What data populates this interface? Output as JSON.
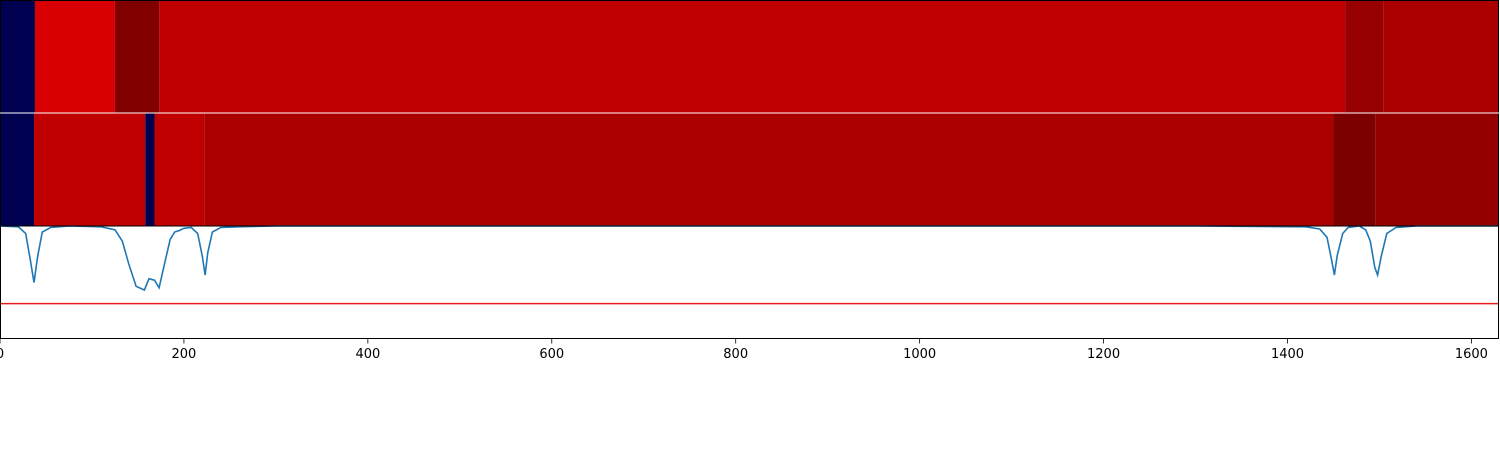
{
  "chart_data": [
    {
      "type": "heatmap",
      "xlim": [
        0,
        1630
      ],
      "segments": [
        {
          "x0": 0,
          "x1": 38,
          "color": "#000050"
        },
        {
          "x0": 38,
          "x1": 125,
          "color": "#d80000"
        },
        {
          "x0": 125,
          "x1": 173,
          "color": "#800000"
        },
        {
          "x0": 173,
          "x1": 1463,
          "color": "#c00000"
        },
        {
          "x0": 1463,
          "x1": 1504,
          "color": "#960000"
        },
        {
          "x0": 1504,
          "x1": 1630,
          "color": "#aa0000"
        }
      ]
    },
    {
      "type": "heatmap",
      "xlim": [
        0,
        1630
      ],
      "segments": [
        {
          "x0": 0,
          "x1": 37,
          "color": "#000050"
        },
        {
          "x0": 37,
          "x1": 158,
          "color": "#c00000"
        },
        {
          "x0": 158,
          "x1": 168,
          "color": "#000050"
        },
        {
          "x0": 168,
          "x1": 222,
          "color": "#c00000"
        },
        {
          "x0": 222,
          "x1": 1450,
          "color": "#aa0000"
        },
        {
          "x0": 1450,
          "x1": 1496,
          "color": "#7c0000"
        },
        {
          "x0": 1496,
          "x1": 1630,
          "color": "#940000"
        }
      ]
    },
    {
      "type": "line",
      "xlim": [
        0,
        1630
      ],
      "ylim": [
        -1.5,
        0
      ],
      "xticks": [
        "0",
        "200",
        "400",
        "600",
        "800",
        "1000",
        "1200",
        "1400",
        "1600"
      ],
      "series": [
        {
          "color": "#1f77b4",
          "points": [
            [
              0,
              0
            ],
            [
              20,
              -0.01
            ],
            [
              28,
              -0.1
            ],
            [
              33,
              -0.45
            ],
            [
              37,
              -0.75
            ],
            [
              41,
              -0.4
            ],
            [
              46,
              -0.08
            ],
            [
              55,
              -0.02
            ],
            [
              75,
              0
            ],
            [
              110,
              -0.01
            ],
            [
              125,
              -0.05
            ],
            [
              133,
              -0.2
            ],
            [
              140,
              -0.5
            ],
            [
              148,
              -0.8
            ],
            [
              157,
              -0.85
            ],
            [
              162,
              -0.7
            ],
            [
              168,
              -0.72
            ],
            [
              173,
              -0.82
            ],
            [
              178,
              -0.55
            ],
            [
              185,
              -0.18
            ],
            [
              190,
              -0.08
            ],
            [
              195,
              -0.06
            ],
            [
              200,
              -0.03
            ],
            [
              208,
              -0.02
            ],
            [
              215,
              -0.1
            ],
            [
              220,
              -0.4
            ],
            [
              223,
              -0.65
            ],
            [
              226,
              -0.35
            ],
            [
              231,
              -0.08
            ],
            [
              240,
              -0.02
            ],
            [
              260,
              -0.01
            ],
            [
              300,
              0
            ],
            [
              700,
              0
            ],
            [
              1000,
              0
            ],
            [
              1300,
              0
            ],
            [
              1420,
              -0.01
            ],
            [
              1435,
              -0.04
            ],
            [
              1443,
              -0.15
            ],
            [
              1448,
              -0.45
            ],
            [
              1451,
              -0.65
            ],
            [
              1454,
              -0.4
            ],
            [
              1460,
              -0.1
            ],
            [
              1466,
              -0.02
            ],
            [
              1478,
              0
            ],
            [
              1485,
              -0.05
            ],
            [
              1490,
              -0.2
            ],
            [
              1495,
              -0.55
            ],
            [
              1498,
              -0.65
            ],
            [
              1502,
              -0.4
            ],
            [
              1508,
              -0.1
            ],
            [
              1518,
              -0.02
            ],
            [
              1540,
              0
            ],
            [
              1630,
              0
            ]
          ]
        },
        {
          "color": "#e41a1c",
          "points": [
            [
              0,
              -1.03
            ],
            [
              1630,
              -1.03
            ]
          ]
        }
      ]
    }
  ]
}
